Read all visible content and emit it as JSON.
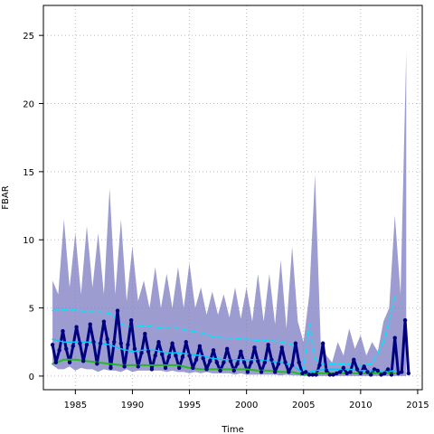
{
  "chart_data": {
    "type": "line",
    "title": "",
    "xlabel": "Time",
    "ylabel": "FBAR",
    "xlim": [
      1982.2,
      2015.4
    ],
    "ylim": [
      -1.0,
      27.2
    ],
    "xticks": [
      1985,
      1990,
      1995,
      2000,
      2005,
      2010,
      2015
    ],
    "yticks": [
      0,
      5,
      10,
      15,
      20,
      25
    ],
    "grid": true,
    "legend": "none",
    "colors": {
      "band": "#7b7bc0",
      "main": "#000080",
      "upper": "#00e5ff",
      "smooth": "#00c8ff",
      "lower": "#22bb22",
      "grid": "#bbbbbb"
    },
    "series": [
      {
        "role": "band",
        "x": [
          1983.0,
          1983.5,
          1984.0,
          1984.5,
          1985.0,
          1985.5,
          1986.0,
          1986.5,
          1987.0,
          1987.5,
          1988.0,
          1988.5,
          1989.0,
          1989.5,
          1990.0,
          1990.5,
          1991.0,
          1991.5,
          1992.0,
          1992.5,
          1993.0,
          1993.5,
          1994.0,
          1994.5,
          1995.0,
          1995.5,
          1996.0,
          1996.5,
          1997.0,
          1997.5,
          1998.0,
          1998.5,
          1999.0,
          1999.5,
          2000.0,
          2000.5,
          2001.0,
          2001.5,
          2002.0,
          2002.5,
          2003.0,
          2003.5,
          2004.0,
          2004.5,
          2005.0,
          2005.5,
          2006.0,
          2006.5,
          2007.0,
          2007.5,
          2008.0,
          2008.5,
          2009.0,
          2009.5,
          2010.0,
          2010.5,
          2011.0,
          2011.5,
          2012.0,
          2012.5,
          2013.0,
          2013.5,
          2014.0
        ],
        "upper": [
          7.0,
          6.0,
          11.5,
          6.5,
          10.5,
          6.0,
          11.0,
          6.5,
          10.5,
          6.0,
          13.8,
          6.0,
          11.5,
          5.5,
          9.5,
          5.5,
          7.0,
          5.0,
          8.0,
          5.0,
          7.5,
          5.0,
          8.0,
          5.0,
          8.3,
          5.0,
          6.5,
          4.5,
          6.2,
          4.5,
          6.0,
          4.3,
          6.5,
          4.2,
          6.5,
          4.0,
          7.5,
          4.0,
          7.5,
          3.8,
          8.5,
          3.5,
          9.5,
          4.0,
          2.5,
          6.0,
          14.8,
          2.5,
          1.5,
          1.0,
          2.5,
          1.5,
          3.5,
          2.0,
          3.0,
          1.5,
          2.5,
          1.8,
          4.0,
          5.0,
          11.8,
          6.0,
          23.8
        ],
        "lower": [
          0.8,
          0.5,
          0.5,
          0.7,
          0.4,
          0.6,
          0.5,
          0.5,
          0.3,
          0.5,
          0.4,
          0.4,
          0.3,
          0.5,
          0.3,
          0.4,
          0.4,
          0.4,
          0.4,
          0.4,
          0.3,
          0.4,
          0.3,
          0.3,
          0.2,
          0.3,
          0.2,
          0.3,
          0.2,
          0.2,
          0.2,
          0.2,
          0.1,
          0.2,
          0.1,
          0.1,
          0.1,
          0.1,
          0.1,
          0.1,
          0.05,
          0.1,
          0.05,
          0.05,
          0.0,
          0.0,
          0.0,
          0.0,
          0.0,
          0.0,
          0.0,
          0.0,
          0.0,
          0.0,
          0.0,
          0.0,
          0.0,
          0.0,
          0.0,
          0.0,
          0.0,
          0.0,
          0.0
        ]
      },
      {
        "role": "upper",
        "x": [
          1983.0,
          1984.0,
          1985.0,
          1986.0,
          1987.0,
          1988.0,
          1988.5,
          1989.0,
          1990.0,
          1991.0,
          1992.0,
          1993.0,
          1994.0,
          1995.0,
          1996.0,
          1997.0,
          1998.0,
          1999.0,
          2000.0,
          2001.0,
          2002.0,
          2003.0,
          2004.0,
          2005.0,
          2005.5,
          2006.0,
          2006.5,
          2007.0,
          2008.0,
          2009.0,
          2010.0,
          2011.0,
          2012.0,
          2012.5,
          2013.0
        ],
        "y": [
          4.8,
          4.9,
          4.9,
          4.7,
          4.7,
          4.6,
          4.3,
          3.8,
          3.6,
          3.7,
          3.6,
          3.5,
          3.5,
          3.3,
          3.2,
          2.9,
          2.8,
          2.8,
          2.7,
          2.6,
          2.6,
          2.5,
          2.3,
          0.5,
          3.8,
          1.3,
          0.9,
          0.9,
          0.9,
          0.9,
          0.8,
          0.9,
          2.5,
          4.0,
          6.0
        ]
      },
      {
        "role": "main",
        "x": [
          1983.0,
          1983.3,
          1983.6,
          1983.9,
          1984.2,
          1984.5,
          1984.8,
          1985.1,
          1985.4,
          1985.7,
          1986.0,
          1986.3,
          1986.6,
          1986.9,
          1987.2,
          1987.5,
          1987.8,
          1988.1,
          1988.4,
          1988.7,
          1989.0,
          1989.3,
          1989.6,
          1989.9,
          1990.2,
          1990.5,
          1990.8,
          1991.1,
          1991.4,
          1991.7,
          1992.0,
          1992.3,
          1992.6,
          1992.9,
          1993.2,
          1993.5,
          1993.8,
          1994.1,
          1994.4,
          1994.7,
          1995.0,
          1995.3,
          1995.6,
          1995.9,
          1996.2,
          1996.5,
          1996.8,
          1997.1,
          1997.4,
          1997.7,
          1998.0,
          1998.3,
          1998.6,
          1998.9,
          1999.2,
          1999.5,
          1999.8,
          2000.1,
          2000.4,
          2000.7,
          2001.0,
          2001.3,
          2001.6,
          2001.9,
          2002.2,
          2002.5,
          2002.8,
          2003.1,
          2003.4,
          2003.7,
          2004.0,
          2004.3,
          2004.6,
          2004.9,
          2005.2,
          2005.5,
          2005.8,
          2006.1,
          2006.4,
          2006.7,
          2007.0,
          2007.3,
          2007.6,
          2007.9,
          2008.2,
          2008.5,
          2008.8,
          2009.1,
          2009.4,
          2009.7,
          2010.0,
          2010.3,
          2010.6,
          2010.9,
          2011.2,
          2011.5,
          2011.8,
          2012.1,
          2012.4,
          2012.7,
          2013.0,
          2013.3,
          2013.6,
          2013.9,
          2014.2
        ],
        "y": [
          2.3,
          1.0,
          1.9,
          3.3,
          2.0,
          1.0,
          2.2,
          3.6,
          2.4,
          1.1,
          2.3,
          3.8,
          2.5,
          0.9,
          2.4,
          4.0,
          2.7,
          0.6,
          2.5,
          4.8,
          2.4,
          0.7,
          2.3,
          4.1,
          2.0,
          0.7,
          1.7,
          3.1,
          1.8,
          0.5,
          1.5,
          2.5,
          1.6,
          0.6,
          1.4,
          2.4,
          1.5,
          0.6,
          1.4,
          2.5,
          1.5,
          0.6,
          1.2,
          2.2,
          1.3,
          0.5,
          1.1,
          1.9,
          1.0,
          0.4,
          1.0,
          2.0,
          1.1,
          0.4,
          0.9,
          1.8,
          1.0,
          0.3,
          1.0,
          2.1,
          1.1,
          0.3,
          1.0,
          2.3,
          1.2,
          0.3,
          0.9,
          2.1,
          1.0,
          0.3,
          0.8,
          2.4,
          1.0,
          0.2,
          0.3,
          0.1,
          0.1,
          0.1,
          0.8,
          2.4,
          0.4,
          0.1,
          0.1,
          0.2,
          0.3,
          0.6,
          0.2,
          0.3,
          1.2,
          0.5,
          0.2,
          0.7,
          0.3,
          0.1,
          0.5,
          0.4,
          0.1,
          0.2,
          0.5,
          0.1,
          2.8,
          0.2,
          0.3,
          4.1,
          0.2
        ]
      },
      {
        "role": "smooth",
        "x": [
          1983.0,
          1984.0,
          1985.0,
          1986.0,
          1987.0,
          1988.0,
          1989.0,
          1990.0,
          1991.0,
          1992.0,
          1993.0,
          1994.0,
          1995.0,
          1996.0,
          1997.0,
          1998.0,
          1999.0,
          2000.0,
          2001.0,
          2002.0,
          2003.0,
          2004.0,
          2005.0,
          2006.0,
          2007.0,
          2008.0,
          2009.0,
          2010.0,
          2011.0,
          2012.0,
          2013.0
        ],
        "y": [
          2.7,
          2.5,
          2.5,
          2.5,
          2.4,
          2.3,
          2.0,
          1.8,
          1.9,
          1.9,
          1.7,
          1.7,
          1.6,
          1.5,
          1.3,
          1.2,
          1.2,
          1.2,
          1.2,
          1.1,
          1.0,
          0.8,
          0.2,
          0.4,
          0.5,
          0.5,
          0.5,
          0.4,
          0.4,
          0.3,
          0.4
        ]
      },
      {
        "role": "lower",
        "x": [
          1983.0,
          1984.0,
          1985.0,
          1986.0,
          1987.0,
          1988.0,
          1989.0,
          1990.0,
          1991.0,
          1992.0,
          1993.0,
          1994.0,
          1995.0,
          1996.0,
          1997.0,
          1998.0,
          1999.0,
          2000.0,
          2001.0,
          2002.0,
          2003.0,
          2004.0,
          2005.0,
          2006.0,
          2007.0,
          2008.0,
          2009.0,
          2010.0,
          2011.0,
          2012.0,
          2013.0
        ],
        "y": [
          0.9,
          1.2,
          1.2,
          1.1,
          1.0,
          0.9,
          0.8,
          0.8,
          0.8,
          0.8,
          0.8,
          0.8,
          0.6,
          0.5,
          0.5,
          0.5,
          0.5,
          0.5,
          0.4,
          0.4,
          0.3,
          0.3,
          0.1,
          0.2,
          0.2,
          0.2,
          0.2,
          0.2,
          0.2,
          0.2,
          0.2
        ]
      }
    ]
  }
}
